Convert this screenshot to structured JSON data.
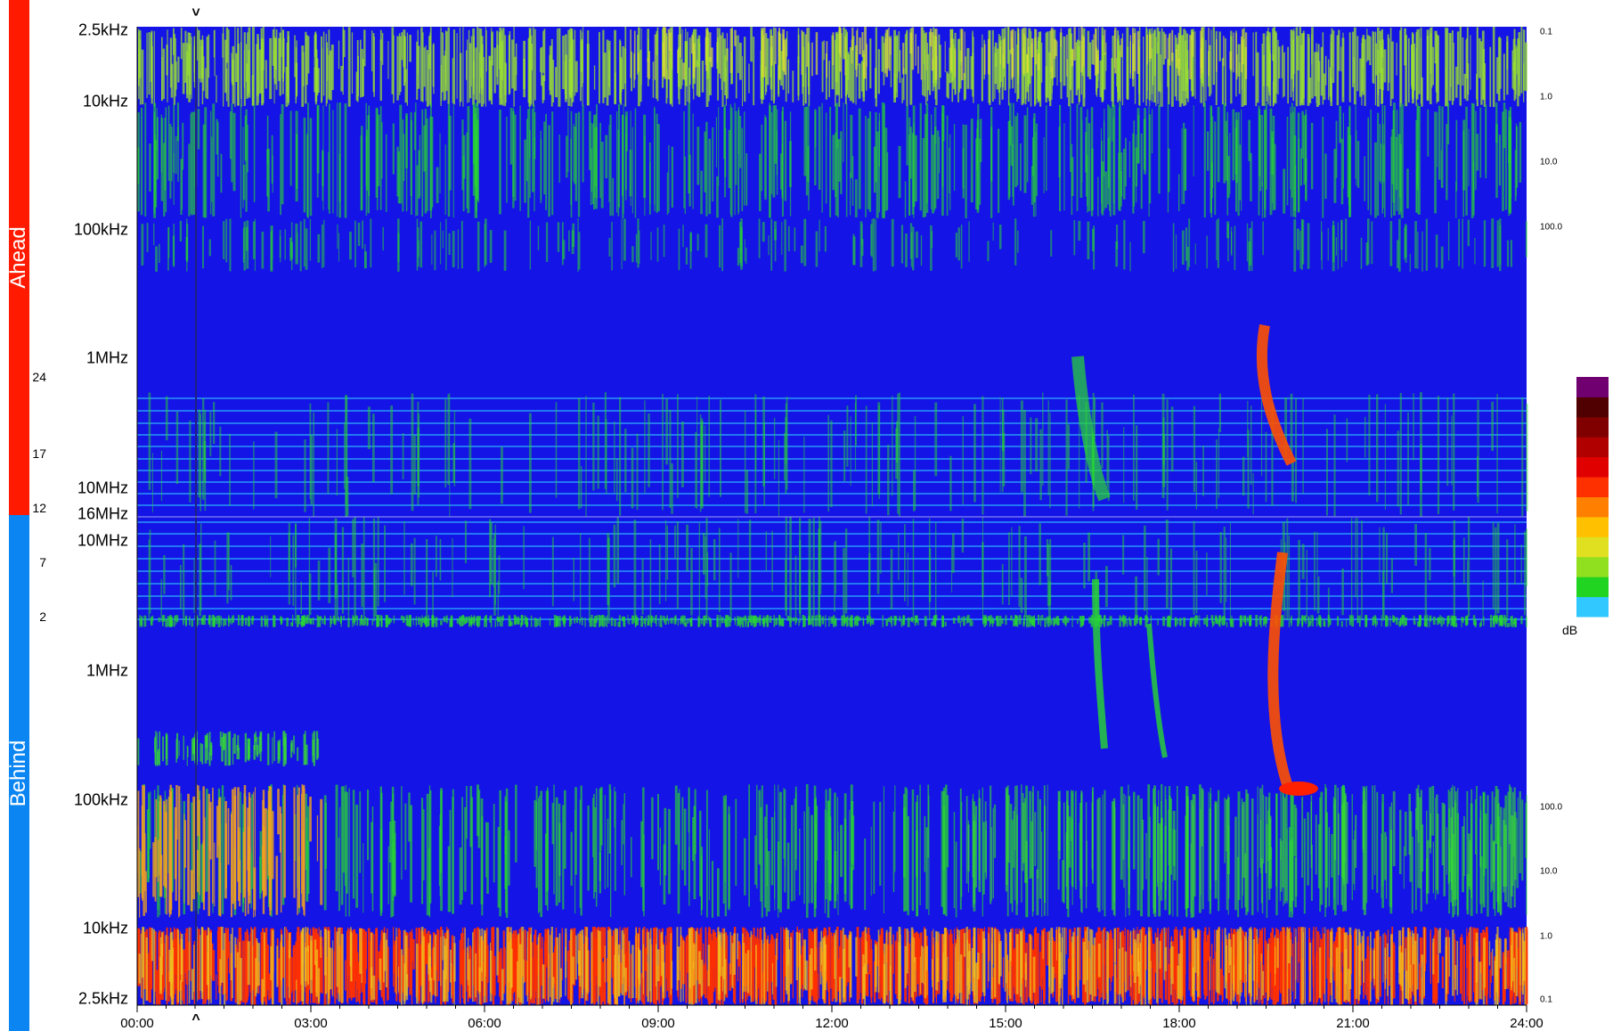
{
  "regions": [
    {
      "label": "Ahead",
      "color": "#ff1a00"
    },
    {
      "label": "Behind",
      "color": "#0a85f2"
    }
  ],
  "freq_labels_ahead": [
    "2.5kHz",
    "10kHz",
    "100kHz",
    "1MHz",
    "10MHz",
    "16MHz"
  ],
  "freq_labels_behind": [
    "10MHz",
    "1MHz",
    "100kHz",
    "10kHz",
    "2.5kHz"
  ],
  "right_ticks_ahead": [
    "0.1",
    "1.0",
    "10.0",
    "100.0"
  ],
  "right_ticks_behind": [
    "100.0",
    "10.0",
    "1.0",
    "0.1"
  ],
  "time_labels": [
    "00:00",
    "03:00",
    "06:00",
    "09:00",
    "12:00",
    "15:00",
    "18:00",
    "21:00",
    "24:00"
  ],
  "colorbar": {
    "ticks": [
      "24",
      "17",
      "12",
      "7",
      "2"
    ],
    "unit": "dB",
    "colors": [
      "#30c8ff",
      "#22d422",
      "#90e020",
      "#e0e020",
      "#ffc000",
      "#ff8000",
      "#ff3000",
      "#e00000",
      "#b00000",
      "#800000",
      "#500000",
      "#700070"
    ]
  },
  "marker_symbols": {
    "top": "˅",
    "bottom": "^"
  },
  "chart_data": {
    "type": "heatmap",
    "title": "",
    "xlabel": "",
    "ylabel": "",
    "x_range": [
      "00:00",
      "24:00"
    ],
    "y_axis_ahead": [
      "2.5kHz",
      "10kHz",
      "100kHz",
      "1MHz",
      "10MHz",
      "16MHz"
    ],
    "y_axis_behind": [
      "16MHz",
      "10MHz",
      "1MHz",
      "100kHz",
      "10kHz",
      "2.5kHz"
    ],
    "colorbar_range_dB": [
      2,
      24
    ],
    "colors": {
      "background": "#1414e6",
      "low": "#22d422",
      "mid": "#e0e020",
      "high": "#ff2000"
    },
    "marker_time": "01:00",
    "features": [
      {
        "panel": "Ahead",
        "type": "type III burst",
        "time": "16:45"
      },
      {
        "panel": "Ahead",
        "type": "type III burst",
        "time": "19:45"
      },
      {
        "panel": "Behind",
        "type": "type III burst",
        "time": "19:50"
      },
      {
        "panel": "Behind",
        "type": "type III burst",
        "time": "16:45"
      },
      {
        "panel": "Behind",
        "type": "type III burst",
        "time": "17:50"
      }
    ]
  }
}
